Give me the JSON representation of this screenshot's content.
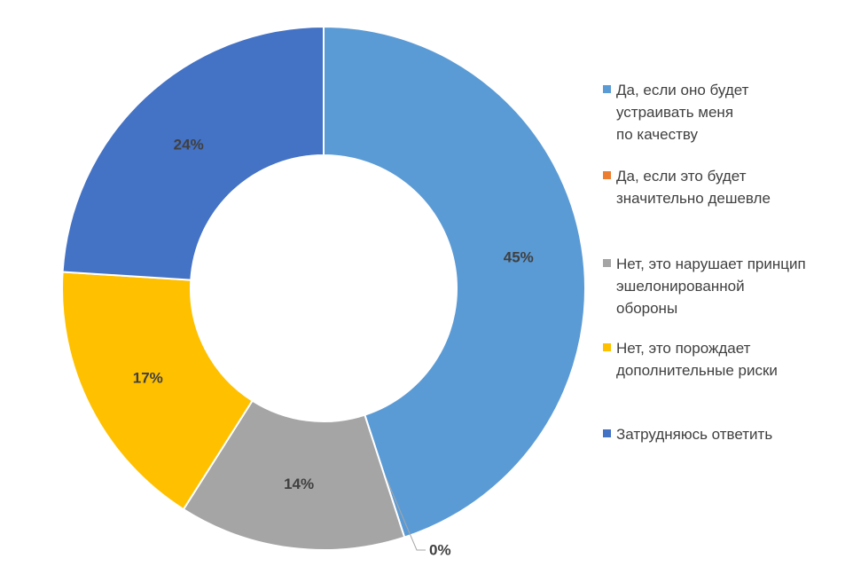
{
  "chart_data": {
    "type": "pie",
    "donut": true,
    "start": "top, clockwise",
    "categories": [
      "Да, если оно будет\nустраивать меня\nпо качеству",
      "Да, если это будет\nзначительно дешевле",
      "Нет, это нарушает принцип\nэшелонированной\nобороны",
      "Нет, это порождает\nдополнительные риски",
      "Затрудняюсь ответить"
    ],
    "values": [
      45,
      0,
      14,
      17,
      24
    ],
    "labels": [
      "45%",
      "0%",
      "14%",
      "17%",
      "24%"
    ],
    "colors": [
      "#5B9BD5",
      "#ED7D31",
      "#A5A5A5",
      "#FFC000",
      "#4472C4"
    ],
    "legend": "right"
  }
}
